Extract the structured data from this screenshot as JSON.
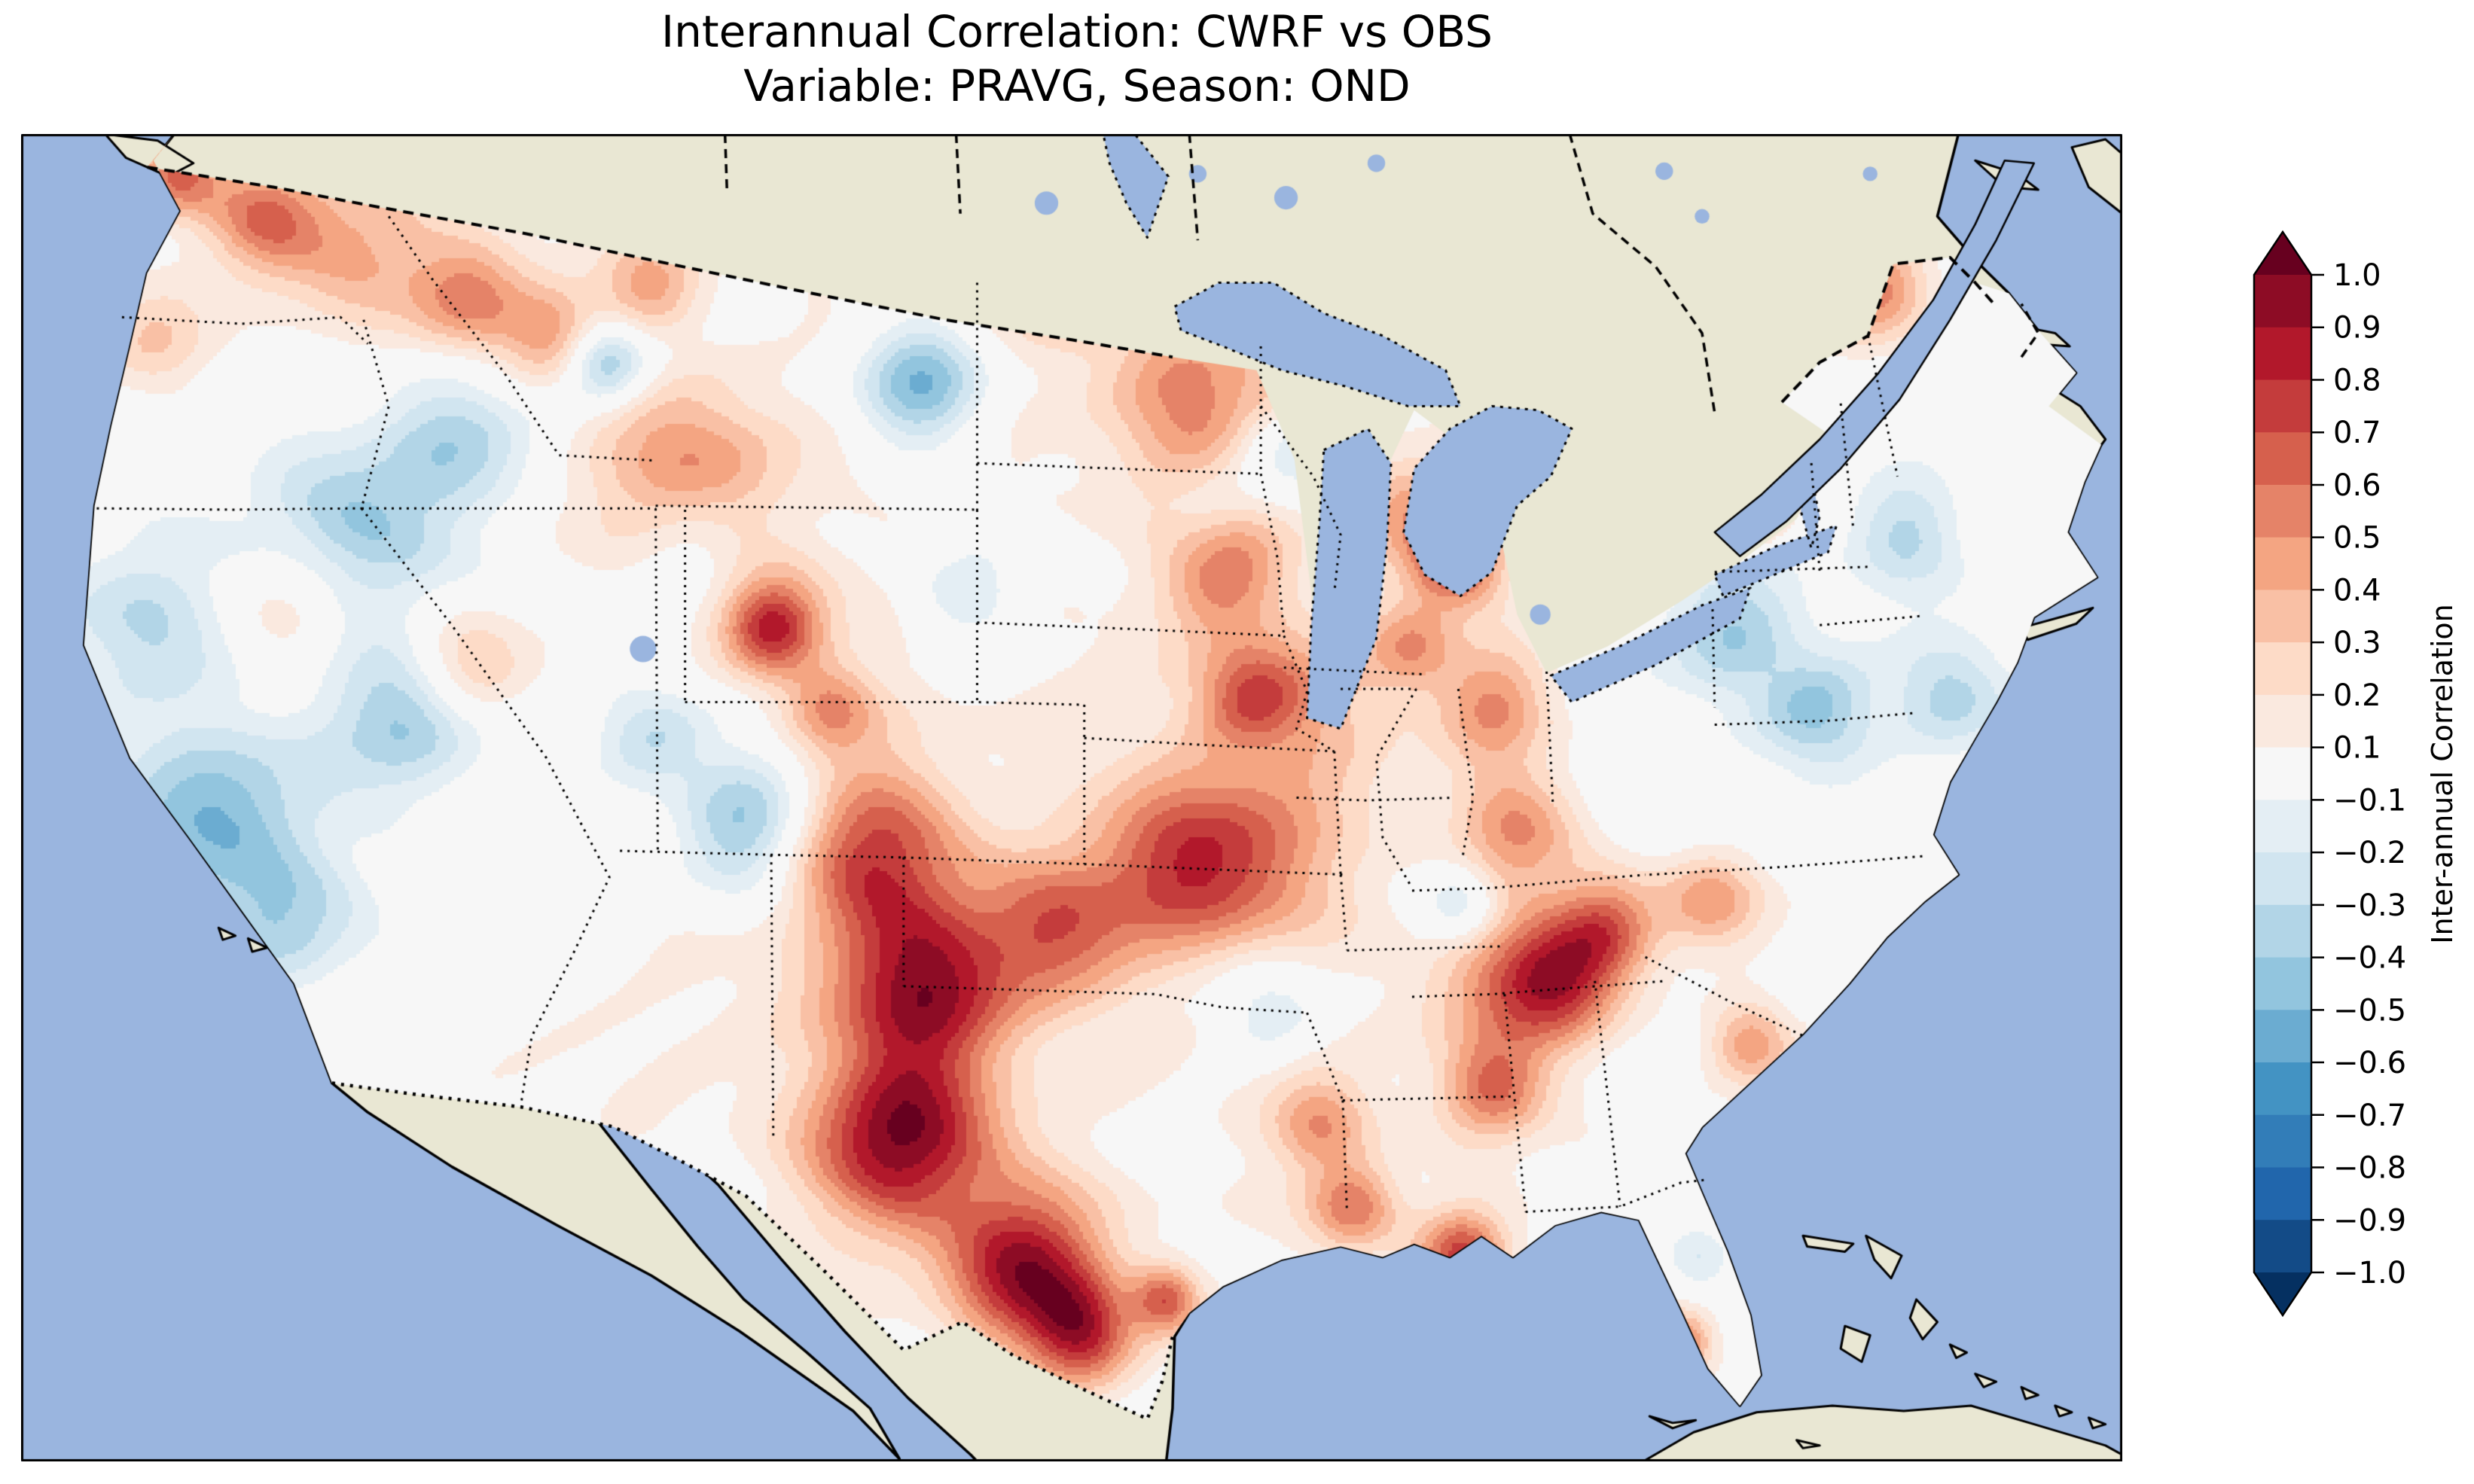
{
  "title": {
    "line1": "Interannual Correlation: CWRF vs OBS",
    "line2": "Variable: PRAVG, Season: OND"
  },
  "colorbar": {
    "label": "Inter-annual Correlation",
    "ticks": [
      "1.0",
      "0.9",
      "0.8",
      "0.7",
      "0.6",
      "0.5",
      "0.4",
      "0.3",
      "0.2",
      "0.1",
      "−0.1",
      "−0.2",
      "−0.3",
      "−0.4",
      "−0.5",
      "−0.6",
      "−0.7",
      "−0.8",
      "−0.9",
      "−1.0"
    ],
    "orientation": "vertical",
    "extend": "both"
  },
  "map_colors": {
    "ocean": "#9ab5df",
    "land": "#e9e7d3",
    "frame": "#000000",
    "coastline": "#000000"
  },
  "chart_data": {
    "type": "heatmap",
    "title": "Interannual Correlation: CWRF vs OBS",
    "subtitle": "Variable: PRAVG, Season: OND",
    "comparison": "CWRF vs OBS",
    "variable": "PRAVG",
    "season": "OND",
    "region": "Contiguous United States (field masked to CONUS), with Canada, Mexico, Atlantic and Pacific shown as plain land/ocean",
    "colormap": "RdBu_r",
    "cmap_anchors_reversed": [
      "#053061",
      "#2166ac",
      "#4393c3",
      "#92c5de",
      "#d1e5f0",
      "#f7f7f7",
      "#fddbc7",
      "#f4a582",
      "#d6604d",
      "#b2182b",
      "#67001f"
    ],
    "levels": [
      -1.0,
      -0.9,
      -0.8,
      -0.7,
      -0.6,
      -0.5,
      -0.4,
      -0.3,
      -0.2,
      -0.1,
      0.1,
      0.2,
      0.3,
      0.4,
      0.5,
      0.6,
      0.7,
      0.8,
      0.9,
      1.0
    ],
    "legend_position": "right",
    "grid": false,
    "field_note": "Approximate correlation field encoded as gaussian features [x_frac, y_frac, sigma, peak_value]; x,y are fractions of map axes (y down). Base field plus features reproduces the visible pattern.",
    "base_value": 0.0,
    "features": [
      [
        0.47,
        0.47,
        0.45,
        0.1
      ],
      [
        0.16,
        0.42,
        0.14,
        -0.12
      ],
      [
        0.84,
        0.4,
        0.11,
        -0.1
      ],
      [
        0.075,
        0.03,
        0.022,
        0.55
      ],
      [
        0.115,
        0.062,
        0.03,
        0.5
      ],
      [
        0.16,
        0.085,
        0.045,
        0.35
      ],
      [
        0.063,
        0.155,
        0.028,
        0.28
      ],
      [
        0.213,
        0.125,
        0.03,
        0.5
      ],
      [
        0.252,
        0.148,
        0.028,
        0.45
      ],
      [
        0.278,
        0.17,
        0.022,
        -0.5
      ],
      [
        0.3,
        0.115,
        0.026,
        0.38
      ],
      [
        0.428,
        0.188,
        0.034,
        -0.55
      ],
      [
        0.315,
        0.258,
        0.046,
        0.55
      ],
      [
        0.358,
        0.372,
        0.026,
        0.78
      ],
      [
        0.32,
        0.3,
        0.03,
        -0.3
      ],
      [
        0.205,
        0.228,
        0.04,
        -0.33
      ],
      [
        0.158,
        0.3,
        0.05,
        -0.35
      ],
      [
        0.058,
        0.36,
        0.04,
        -0.3
      ],
      [
        0.093,
        0.52,
        0.052,
        -0.45
      ],
      [
        0.128,
        0.6,
        0.035,
        -0.3
      ],
      [
        0.13,
        0.355,
        0.035,
        0.3
      ],
      [
        0.212,
        0.395,
        0.032,
        0.35
      ],
      [
        0.185,
        0.44,
        0.035,
        -0.4
      ],
      [
        0.3,
        0.45,
        0.03,
        -0.3
      ],
      [
        0.385,
        0.43,
        0.024,
        0.42
      ],
      [
        0.505,
        0.092,
        0.04,
        0.52
      ],
      [
        0.545,
        0.058,
        0.03,
        0.45
      ],
      [
        0.452,
        0.06,
        0.035,
        0.4
      ],
      [
        0.56,
        0.205,
        0.045,
        0.55
      ],
      [
        0.572,
        0.318,
        0.034,
        0.68
      ],
      [
        0.585,
        0.42,
        0.03,
        0.48
      ],
      [
        0.558,
        0.548,
        0.046,
        0.68
      ],
      [
        0.403,
        0.538,
        0.046,
        0.65
      ],
      [
        0.428,
        0.64,
        0.05,
        0.8
      ],
      [
        0.418,
        0.758,
        0.048,
        0.88
      ],
      [
        0.478,
        0.853,
        0.04,
        0.85
      ],
      [
        0.505,
        0.903,
        0.028,
        0.72
      ],
      [
        0.545,
        0.878,
        0.018,
        0.62
      ],
      [
        0.493,
        0.598,
        0.04,
        0.55
      ],
      [
        0.345,
        0.52,
        0.038,
        -0.55
      ],
      [
        0.452,
        0.34,
        0.028,
        -0.3
      ],
      [
        0.565,
        0.293,
        0.028,
        -0.42
      ],
      [
        0.6,
        0.232,
        0.034,
        -0.35
      ],
      [
        0.683,
        0.318,
        0.024,
        0.75
      ],
      [
        0.658,
        0.282,
        0.024,
        0.35
      ],
      [
        0.662,
        0.385,
        0.024,
        0.4
      ],
      [
        0.608,
        0.178,
        0.028,
        0.3
      ],
      [
        0.7,
        0.428,
        0.03,
        0.45
      ],
      [
        0.71,
        0.528,
        0.034,
        0.5
      ],
      [
        0.7,
        0.638,
        0.034,
        0.36
      ],
      [
        0.615,
        0.44,
        0.046,
        0.26
      ],
      [
        0.598,
        0.553,
        0.046,
        0.22
      ],
      [
        0.618,
        0.748,
        0.026,
        0.45
      ],
      [
        0.634,
        0.808,
        0.024,
        0.52
      ],
      [
        0.593,
        0.655,
        0.03,
        -0.28
      ],
      [
        0.815,
        0.378,
        0.034,
        -0.36
      ],
      [
        0.855,
        0.438,
        0.03,
        -0.4
      ],
      [
        0.686,
        0.576,
        0.022,
        -0.35
      ],
      [
        0.918,
        0.42,
        0.03,
        -0.35
      ],
      [
        0.898,
        0.298,
        0.028,
        -0.3
      ],
      [
        0.883,
        0.118,
        0.028,
        0.52
      ],
      [
        0.84,
        0.248,
        0.017,
        0.45
      ],
      [
        0.82,
        0.29,
        0.02,
        0.4
      ],
      [
        0.73,
        0.638,
        0.032,
        0.7
      ],
      [
        0.755,
        0.598,
        0.028,
        0.6
      ],
      [
        0.7,
        0.718,
        0.028,
        0.6
      ],
      [
        0.686,
        0.843,
        0.024,
        0.7
      ],
      [
        0.804,
        0.578,
        0.026,
        0.45
      ],
      [
        0.823,
        0.683,
        0.022,
        0.45
      ],
      [
        0.791,
        0.91,
        0.016,
        0.55
      ],
      [
        0.798,
        0.848,
        0.018,
        -0.25
      ]
    ]
  }
}
